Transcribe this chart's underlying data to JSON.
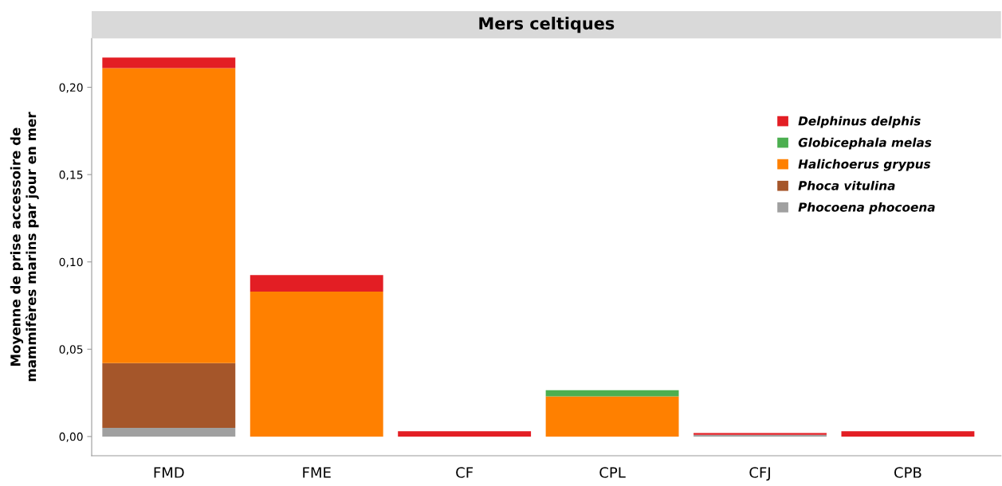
{
  "chart_data": {
    "type": "bar",
    "stacked": true,
    "title": "Mers celtiques",
    "ylabel": "Moyenne de prise accessoire de\nmammifères marins par jour en mer",
    "categories": [
      "FMD",
      "FME",
      "CF",
      "CPL",
      "CFJ",
      "CPB"
    ],
    "series": [
      {
        "name": "Phocoena phocoena",
        "color": "#a0a0a0",
        "values": [
          0.005,
          0,
          0,
          0,
          0.001,
          0
        ]
      },
      {
        "name": "Phoca vitulina",
        "color": "#a5562a",
        "values": [
          0.037,
          0,
          0,
          0,
          0,
          0
        ]
      },
      {
        "name": "Halichoerus grypus",
        "color": "#ff8000",
        "values": [
          0.169,
          0.083,
          0,
          0.023,
          0,
          0
        ]
      },
      {
        "name": "Globicephala melas",
        "color": "#4caf50",
        "values": [
          0,
          0,
          0,
          0.0035,
          0,
          0
        ]
      },
      {
        "name": "Delphinus delphis",
        "color": "#e31e24",
        "values": [
          0.006,
          0.0095,
          0.003,
          0,
          0.001,
          0.003
        ]
      }
    ],
    "ylim": [
      -0.011,
      0.228
    ],
    "yticks": [
      {
        "value": 0,
        "label": "0,00"
      },
      {
        "value": 0.05,
        "label": "0,05"
      },
      {
        "value": 0.1,
        "label": "0,10"
      },
      {
        "value": 0.15,
        "label": "0,15"
      },
      {
        "value": 0.2,
        "label": "0,20"
      }
    ],
    "grid": false,
    "legend": "top right"
  }
}
